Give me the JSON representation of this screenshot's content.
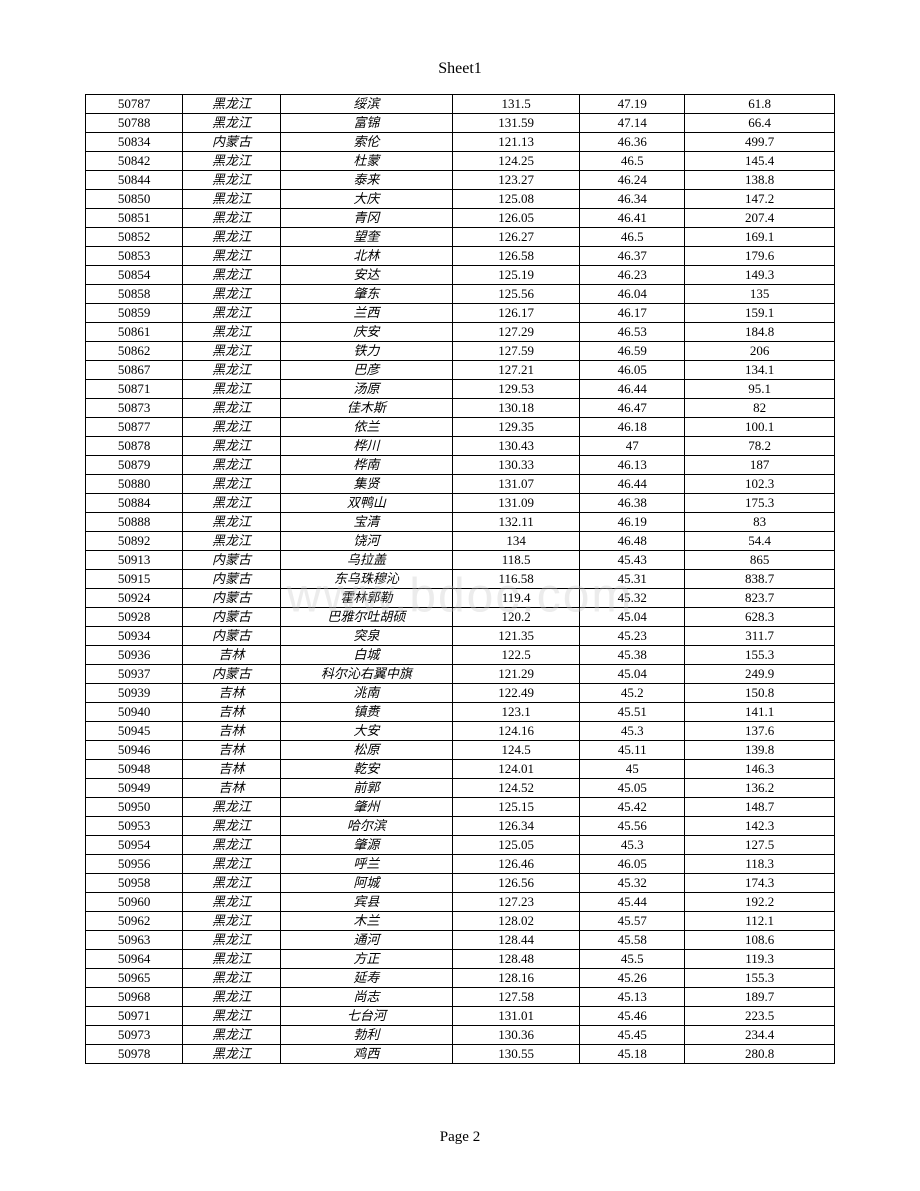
{
  "sheet_title": "Sheet1",
  "page_label": "Page 2",
  "watermark_text": "www.bdoc.com",
  "table": {
    "type": "table",
    "column_widths_percent": [
      13,
      13,
      23,
      17,
      14,
      20
    ],
    "column_alignments": [
      "center",
      "center",
      "center",
      "center",
      "center",
      "center"
    ],
    "border_color": "#000000",
    "background_color": "#ffffff",
    "font_size_pt": 10,
    "rows": [
      [
        "50787",
        "黑龙江",
        "绥滨",
        "131.5",
        "47.19",
        "61.8"
      ],
      [
        "50788",
        "黑龙江",
        "富锦",
        "131.59",
        "47.14",
        "66.4"
      ],
      [
        "50834",
        "内蒙古",
        "索伦",
        "121.13",
        "46.36",
        "499.7"
      ],
      [
        "50842",
        "黑龙江",
        "杜蒙",
        "124.25",
        "46.5",
        "145.4"
      ],
      [
        "50844",
        "黑龙江",
        "泰来",
        "123.27",
        "46.24",
        "138.8"
      ],
      [
        "50850",
        "黑龙江",
        "大庆",
        "125.08",
        "46.34",
        "147.2"
      ],
      [
        "50851",
        "黑龙江",
        "青冈",
        "126.05",
        "46.41",
        "207.4"
      ],
      [
        "50852",
        "黑龙江",
        "望奎",
        "126.27",
        "46.5",
        "169.1"
      ],
      [
        "50853",
        "黑龙江",
        "北林",
        "126.58",
        "46.37",
        "179.6"
      ],
      [
        "50854",
        "黑龙江",
        "安达",
        "125.19",
        "46.23",
        "149.3"
      ],
      [
        "50858",
        "黑龙江",
        "肇东",
        "125.56",
        "46.04",
        "135"
      ],
      [
        "50859",
        "黑龙江",
        "兰西",
        "126.17",
        "46.17",
        "159.1"
      ],
      [
        "50861",
        "黑龙江",
        "庆安",
        "127.29",
        "46.53",
        "184.8"
      ],
      [
        "50862",
        "黑龙江",
        "铁力",
        "127.59",
        "46.59",
        "206"
      ],
      [
        "50867",
        "黑龙江",
        "巴彦",
        "127.21",
        "46.05",
        "134.1"
      ],
      [
        "50871",
        "黑龙江",
        "汤原",
        "129.53",
        "46.44",
        "95.1"
      ],
      [
        "50873",
        "黑龙江",
        "佳木斯",
        "130.18",
        "46.47",
        "82"
      ],
      [
        "50877",
        "黑龙江",
        "依兰",
        "129.35",
        "46.18",
        "100.1"
      ],
      [
        "50878",
        "黑龙江",
        "桦川",
        "130.43",
        "47",
        "78.2"
      ],
      [
        "50879",
        "黑龙江",
        "桦南",
        "130.33",
        "46.13",
        "187"
      ],
      [
        "50880",
        "黑龙江",
        "集贤",
        "131.07",
        "46.44",
        "102.3"
      ],
      [
        "50884",
        "黑龙江",
        "双鸭山",
        "131.09",
        "46.38",
        "175.3"
      ],
      [
        "50888",
        "黑龙江",
        "宝清",
        "132.11",
        "46.19",
        "83"
      ],
      [
        "50892",
        "黑龙江",
        "饶河",
        "134",
        "46.48",
        "54.4"
      ],
      [
        "50913",
        "内蒙古",
        "乌拉盖",
        "118.5",
        "45.43",
        "865"
      ],
      [
        "50915",
        "内蒙古",
        "东乌珠穆沁",
        "116.58",
        "45.31",
        "838.7"
      ],
      [
        "50924",
        "内蒙古",
        "霍林郭勒",
        "119.4",
        "45.32",
        "823.7"
      ],
      [
        "50928",
        "内蒙古",
        "巴雅尔吐胡硕",
        "120.2",
        "45.04",
        "628.3"
      ],
      [
        "50934",
        "内蒙古",
        "突泉",
        "121.35",
        "45.23",
        "311.7"
      ],
      [
        "50936",
        "吉林",
        "白城",
        "122.5",
        "45.38",
        "155.3"
      ],
      [
        "50937",
        "内蒙古",
        "科尔沁右翼中旗",
        "121.29",
        "45.04",
        "249.9"
      ],
      [
        "50939",
        "吉林",
        "洮南",
        "122.49",
        "45.2",
        "150.8"
      ],
      [
        "50940",
        "吉林",
        "镇赉",
        "123.1",
        "45.51",
        "141.1"
      ],
      [
        "50945",
        "吉林",
        "大安",
        "124.16",
        "45.3",
        "137.6"
      ],
      [
        "50946",
        "吉林",
        "松原",
        "124.5",
        "45.11",
        "139.8"
      ],
      [
        "50948",
        "吉林",
        "乾安",
        "124.01",
        "45",
        "146.3"
      ],
      [
        "50949",
        "吉林",
        "前郭",
        "124.52",
        "45.05",
        "136.2"
      ],
      [
        "50950",
        "黑龙江",
        "肇州",
        "125.15",
        "45.42",
        "148.7"
      ],
      [
        "50953",
        "黑龙江",
        "哈尔滨",
        "126.34",
        "45.56",
        "142.3"
      ],
      [
        "50954",
        "黑龙江",
        "肇源",
        "125.05",
        "45.3",
        "127.5"
      ],
      [
        "50956",
        "黑龙江",
        "呼兰",
        "126.46",
        "46.05",
        "118.3"
      ],
      [
        "50958",
        "黑龙江",
        "阿城",
        "126.56",
        "45.32",
        "174.3"
      ],
      [
        "50960",
        "黑龙江",
        "宾县",
        "127.23",
        "45.44",
        "192.2"
      ],
      [
        "50962",
        "黑龙江",
        "木兰",
        "128.02",
        "45.57",
        "112.1"
      ],
      [
        "50963",
        "黑龙江",
        "通河",
        "128.44",
        "45.58",
        "108.6"
      ],
      [
        "50964",
        "黑龙江",
        "方正",
        "128.48",
        "45.5",
        "119.3"
      ],
      [
        "50965",
        "黑龙江",
        "延寿",
        "128.16",
        "45.26",
        "155.3"
      ],
      [
        "50968",
        "黑龙江",
        "尚志",
        "127.58",
        "45.13",
        "189.7"
      ],
      [
        "50971",
        "黑龙江",
        "七台河",
        "131.01",
        "45.46",
        "223.5"
      ],
      [
        "50973",
        "黑龙江",
        "勃利",
        "130.36",
        "45.45",
        "234.4"
      ],
      [
        "50978",
        "黑龙江",
        "鸡西",
        "130.55",
        "45.18",
        "280.8"
      ]
    ]
  }
}
